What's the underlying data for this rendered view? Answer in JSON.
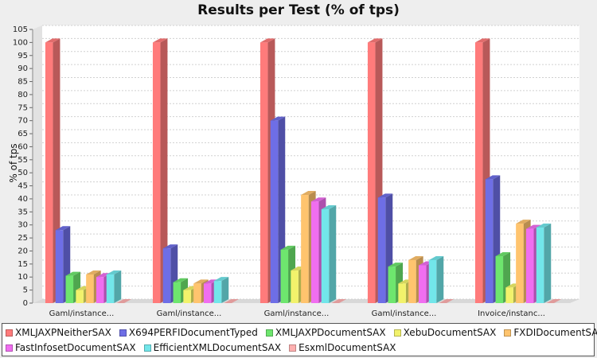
{
  "chart_data": {
    "type": "bar",
    "title": "Results per Test (% of tps)",
    "ylabel": "% of tps",
    "xlabel": "",
    "ylim": [
      0,
      105
    ],
    "ytick_step": 5,
    "grid": true,
    "legend_position": "bottom",
    "categories": [
      "Gaml/instance...",
      "Gaml/instance...",
      "Gaml/instance...",
      "Gaml/instance...",
      "Invoice/instanc..."
    ],
    "series": [
      {
        "name": "XMLJAXPNeitherSAX",
        "color": "#ff7b7b",
        "values": [
          100,
          100,
          100,
          100,
          100
        ]
      },
      {
        "name": "X694PERFIDocumentTyped",
        "color": "#6e6ee6",
        "values": [
          28,
          21,
          70,
          40.5,
          47.5
        ]
      },
      {
        "name": "XMLJAXPDocumentSAX",
        "color": "#6ee66e",
        "values": [
          10.5,
          8,
          20.5,
          14,
          18
        ]
      },
      {
        "name": "XebuDocumentSAX",
        "color": "#f2f26b",
        "values": [
          5,
          5,
          12.5,
          7.5,
          6
        ]
      },
      {
        "name": "FXDIDocumentSAX",
        "color": "#ffc46e",
        "values": [
          11,
          7.5,
          41.5,
          16.5,
          30.5
        ]
      },
      {
        "name": "FastInfosetDocumentSAX",
        "color": "#f06ef0",
        "values": [
          10,
          7.5,
          39,
          14.5,
          28.5
        ]
      },
      {
        "name": "EfficientXMLDocumentSAX",
        "color": "#72e6ea",
        "values": [
          11,
          8.5,
          36,
          16.5,
          29
        ]
      },
      {
        "name": "EsxmlDocumentSAX",
        "color": "#ffb0b0",
        "values": [
          0,
          0,
          0,
          0,
          0
        ]
      }
    ]
  }
}
